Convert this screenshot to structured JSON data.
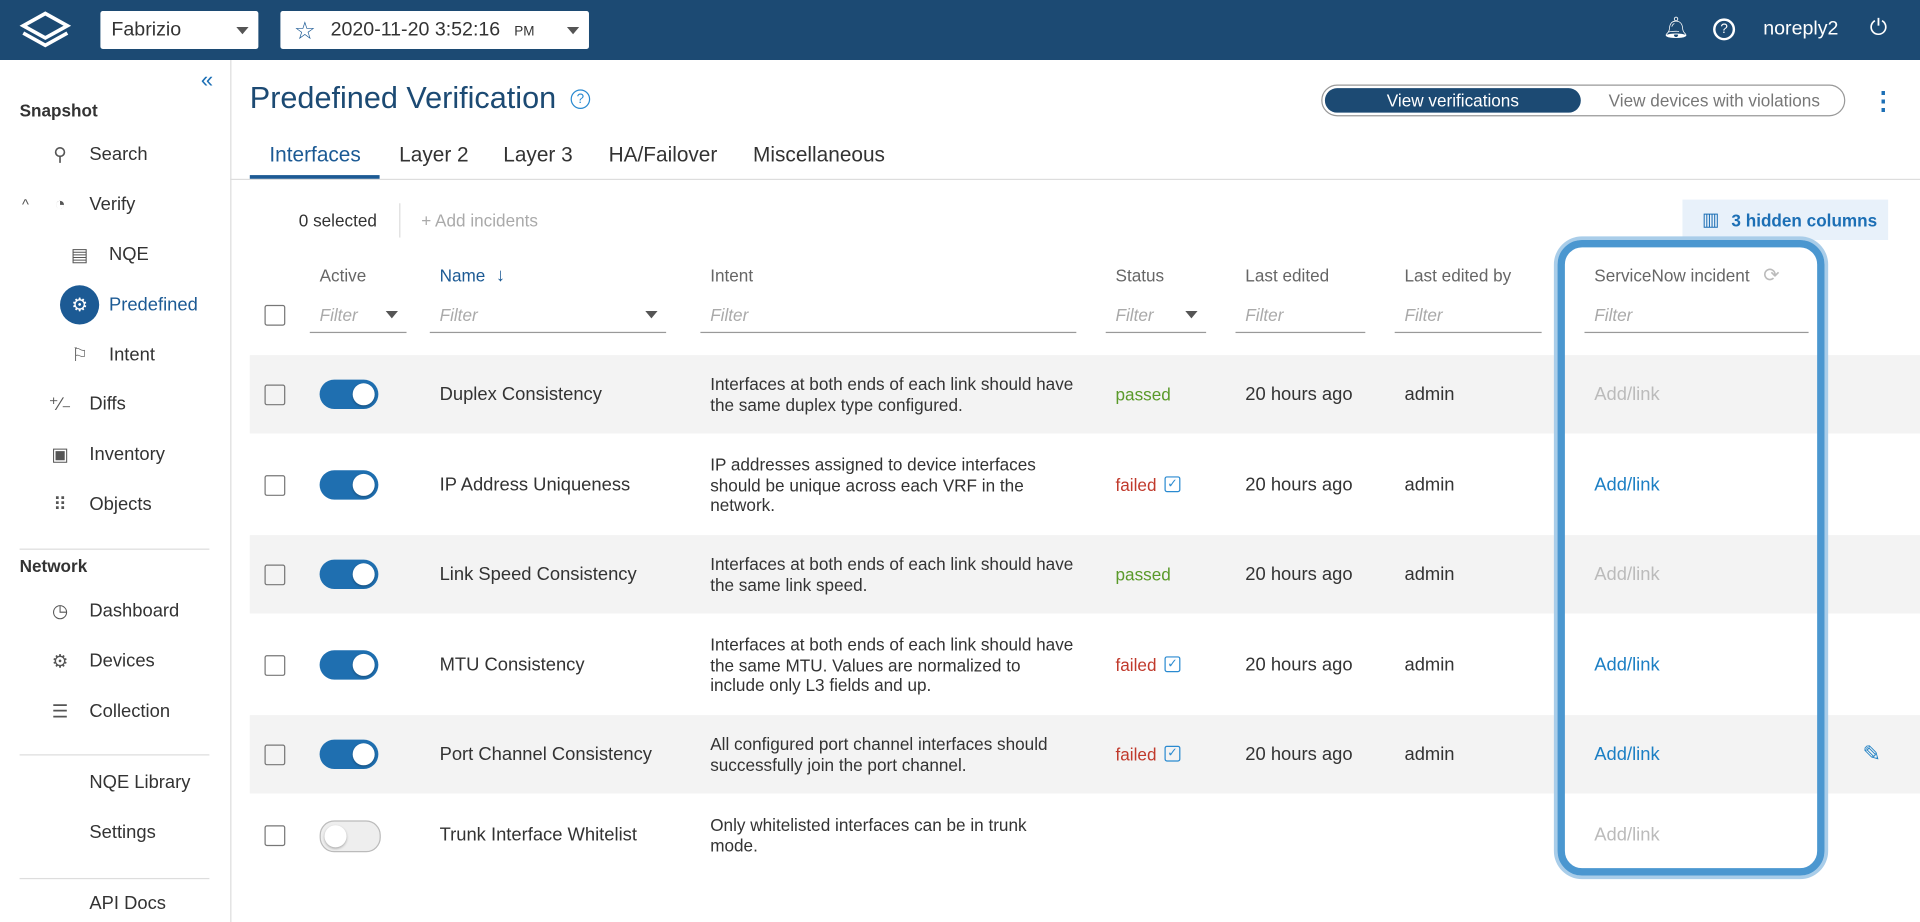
{
  "header": {
    "snapshot": "Fabrizio",
    "datetime": "2020-11-20  3:52:16",
    "ampm": "PM",
    "user": "noreply2"
  },
  "sidebar": {
    "sections": [
      {
        "title": "Snapshot",
        "items": [
          "Search",
          "Verify",
          "NQE",
          "Predefined",
          "Intent",
          "Diffs",
          "Inventory",
          "Objects"
        ]
      },
      {
        "title": "Network",
        "items": [
          "Dashboard",
          "Devices",
          "Collection"
        ]
      }
    ],
    "extra": [
      "NQE Library",
      "Settings",
      "API Docs"
    ]
  },
  "page": {
    "title": "Predefined Verification",
    "view_toggle": [
      "View verifications",
      "View devices with violations"
    ],
    "tabs": [
      "Interfaces",
      "Layer 2",
      "Layer 3",
      "HA/Failover",
      "Miscellaneous"
    ],
    "selected": "0 selected",
    "add_incidents": "Add incidents",
    "hidden_columns": "3 hidden columns"
  },
  "table": {
    "columns": [
      "Active",
      "Name",
      "Intent",
      "Status",
      "Last edited",
      "Last edited by",
      "ServiceNow incident"
    ],
    "filter": "Filter",
    "rows": [
      {
        "active": true,
        "name": "Duplex Consistency",
        "intent": "Interfaces at both ends of each link should have the same duplex type configured.",
        "status": "passed",
        "edited": "20 hours ago",
        "by": "admin",
        "incident": "Add/link",
        "incident_enabled": false
      },
      {
        "active": true,
        "name": "IP Address Uniqueness",
        "intent": "IP addresses assigned to device interfaces should be unique across each VRF in the network.",
        "status": "failed",
        "edited": "20 hours ago",
        "by": "admin",
        "incident": "Add/link",
        "incident_enabled": true
      },
      {
        "active": true,
        "name": "Link Speed Consistency",
        "intent": "Interfaces at both ends of each link should have the same link speed.",
        "status": "passed",
        "edited": "20 hours ago",
        "by": "admin",
        "incident": "Add/link",
        "incident_enabled": false
      },
      {
        "active": true,
        "name": "MTU Consistency",
        "intent": "Interfaces at both ends of each link should have the same MTU. Values are normalized to include only L3 fields and up.",
        "status": "failed",
        "edited": "20 hours ago",
        "by": "admin",
        "incident": "Add/link",
        "incident_enabled": true
      },
      {
        "active": true,
        "name": "Port Channel Consistency",
        "intent": "All configured port channel interfaces should successfully join the port channel.",
        "status": "failed",
        "edited": "20 hours ago",
        "by": "admin",
        "incident": "Add/link",
        "incident_enabled": true
      },
      {
        "active": false,
        "name": "Trunk Interface Whitelist",
        "intent": "Only whitelisted interfaces can be in trunk mode.",
        "incident": "Add/link",
        "incident_enabled": false
      }
    ]
  }
}
